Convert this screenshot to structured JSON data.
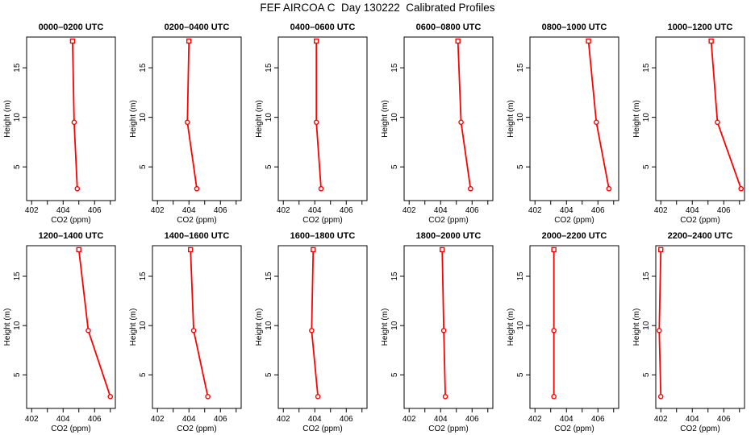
{
  "page_title": "FEF AIRCOA C  Day 130222  Calibrated Profiles",
  "colors": {
    "line": "#ff0000",
    "axis": "#000000",
    "background": "#ffffff"
  },
  "chart_data": {
    "type": "line",
    "title": "FEF AIRCOA C  Day 130222  Calibrated Profiles",
    "xlabel": "CO2 (ppm)",
    "ylabel": "Height (m)",
    "xlim": [
      401.68,
      407.32
    ],
    "ylim": [
      1.6,
      18.1
    ],
    "xticks_minor": [
      402,
      403,
      404,
      405,
      406,
      407
    ],
    "xticks_labeled": [
      402,
      404,
      406
    ],
    "yticks": [
      5,
      10,
      15
    ],
    "grid": false,
    "legend": false,
    "line_color": "#ff0000",
    "heights_m": [
      2.8,
      9.5,
      17.7
    ],
    "markers_by_height": [
      "circle",
      "circle",
      "square"
    ],
    "panels": [
      {
        "label": "0000–0200 UTC",
        "co2_ppm": [
          404.9,
          404.7,
          404.6
        ]
      },
      {
        "label": "0200–0400 UTC",
        "co2_ppm": [
          404.5,
          403.9,
          404.0
        ]
      },
      {
        "label": "0400–0600 UTC",
        "co2_ppm": [
          404.4,
          404.1,
          404.1
        ]
      },
      {
        "label": "0600–0800 UTC",
        "co2_ppm": [
          405.9,
          405.3,
          405.1
        ]
      },
      {
        "label": "0800–1000 UTC",
        "co2_ppm": [
          406.7,
          405.9,
          405.4
        ]
      },
      {
        "label": "1000–1200 UTC",
        "co2_ppm": [
          407.1,
          405.6,
          405.2
        ]
      },
      {
        "label": "1200–1400 UTC",
        "co2_ppm": [
          407.0,
          405.6,
          405.0
        ]
      },
      {
        "label": "1400–1600 UTC",
        "co2_ppm": [
          405.2,
          404.3,
          404.1
        ]
      },
      {
        "label": "1600–1800 UTC",
        "co2_ppm": [
          404.2,
          403.8,
          403.9
        ]
      },
      {
        "label": "1800–2000 UTC",
        "co2_ppm": [
          404.3,
          404.2,
          404.1
        ]
      },
      {
        "label": "2000–2200 UTC",
        "co2_ppm": [
          403.2,
          403.2,
          403.2
        ]
      },
      {
        "label": "2200–2400 UTC",
        "co2_ppm": [
          402.0,
          401.9,
          402.0
        ]
      }
    ]
  }
}
